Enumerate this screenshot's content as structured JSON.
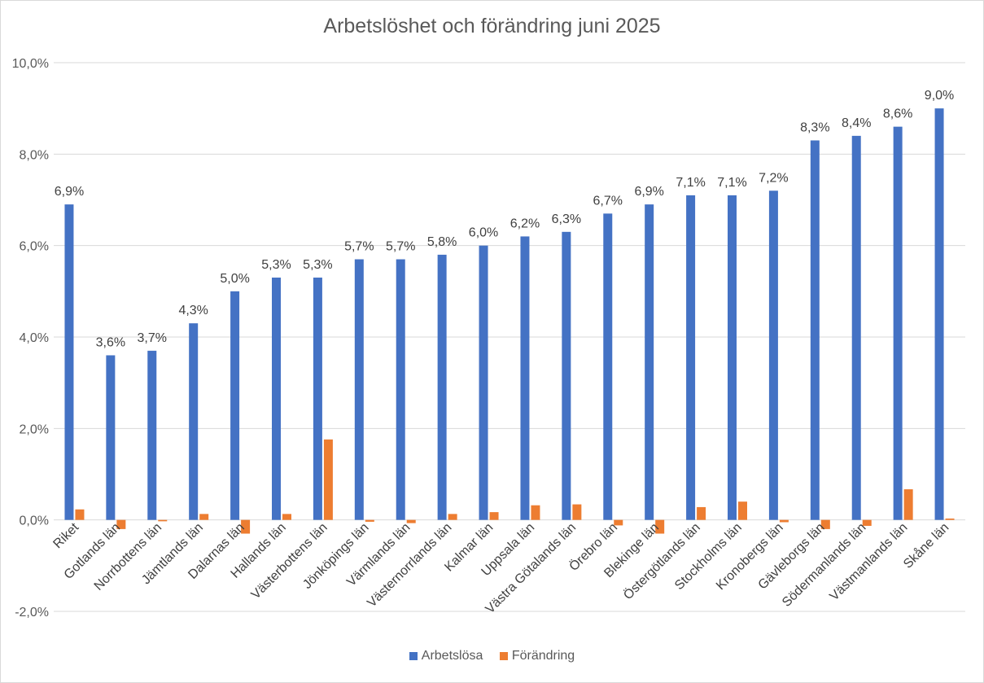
{
  "chart_data": {
    "type": "bar",
    "title": "Arbetslöshet och förändring juni 2025",
    "xlabel": "",
    "ylabel": "",
    "ylim": [
      -2.0,
      10.0
    ],
    "yticks": [
      -2.0,
      0.0,
      2.0,
      4.0,
      6.0,
      8.0,
      10.0
    ],
    "ytick_labels": [
      "-2,0%",
      "0,0%",
      "2,0%",
      "4,0%",
      "6,0%",
      "8,0%",
      "10,0%"
    ],
    "grid": true,
    "legend_position": "bottom",
    "categories": [
      "Riket",
      "Gotlands län",
      "Norrbottens län",
      "Jämtlands län",
      "Dalarnas län",
      "Hallands län",
      "Västerbottens län",
      "Jönköpings län",
      "Värmlands län",
      "Västernorrlands län",
      "Kalmar län",
      "Uppsala län",
      "Västra Götalands län",
      "Örebro län",
      "Blekinge län",
      "Östergötlands län",
      "Stockholms län",
      "Kronobergs län",
      "Gävleborgs län",
      "Södermanlands län",
      "Västmanlands län",
      "Skåne län"
    ],
    "series": [
      {
        "name": "Arbetslösa",
        "color": "#4472c4",
        "values": [
          6.9,
          3.6,
          3.7,
          4.3,
          5.0,
          5.3,
          5.3,
          5.7,
          5.7,
          5.8,
          6.0,
          6.2,
          6.3,
          6.7,
          6.9,
          7.1,
          7.1,
          7.2,
          8.3,
          8.4,
          8.6,
          9.0
        ],
        "labels": [
          "6,9%",
          "3,6%",
          "3,7%",
          "4,3%",
          "5,0%",
          "5,3%",
          "5,3%",
          "5,7%",
          "5,7%",
          "5,8%",
          "6,0%",
          "6,2%",
          "6,3%",
          "6,7%",
          "6,9%",
          "7,1%",
          "7,1%",
          "7,2%",
          "8,3%",
          "8,4%",
          "8,6%",
          "9,0%"
        ]
      },
      {
        "name": "Förändring",
        "color": "#ed7d31",
        "values": [
          0.23,
          -0.2,
          -0.03,
          0.13,
          -0.3,
          0.13,
          1.76,
          -0.04,
          -0.07,
          0.13,
          0.17,
          0.32,
          0.34,
          -0.12,
          -0.3,
          0.28,
          0.4,
          -0.05,
          -0.2,
          -0.13,
          0.67,
          0.03
        ]
      }
    ]
  }
}
